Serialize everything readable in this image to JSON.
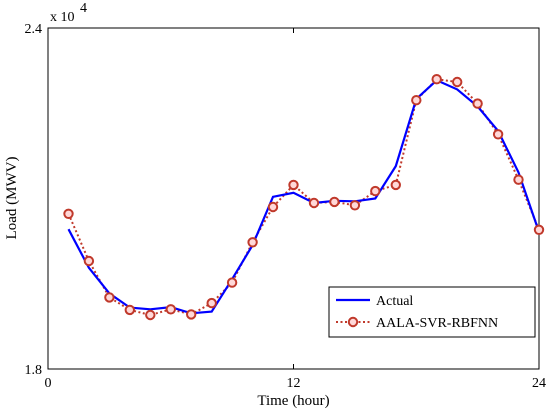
{
  "chart_data": {
    "type": "line",
    "xlabel": "Time (hour)",
    "ylabel": "Load (MWV)",
    "xlim": [
      0,
      24
    ],
    "ylim": [
      18000,
      24000
    ],
    "x_ticks": [
      "0",
      "12",
      "24"
    ],
    "y_ticks": [
      "1.8",
      "2.4"
    ],
    "y_multiplier": "x 10",
    "y_multiplier_exp": "4",
    "grid": false,
    "legend_position": "bottom-right",
    "x": [
      1,
      2,
      3,
      4,
      5,
      6,
      7,
      8,
      9,
      10,
      11,
      12,
      13,
      14,
      15,
      16,
      17,
      18,
      19,
      20,
      21,
      22,
      23,
      24
    ],
    "series": [
      {
        "name": "Actual",
        "color": "#0000ff",
        "style": "solid",
        "values": [
          20460,
          19780,
          19330,
          19080,
          19050,
          19090,
          18980,
          19010,
          19580,
          20180,
          21030,
          21100,
          20920,
          20960,
          20950,
          21000,
          21570,
          22750,
          23080,
          22920,
          22620,
          22190,
          21460,
          20410
        ]
      },
      {
        "name": "AALA-SVR-RBFNN",
        "color": "#c0392b",
        "marker_color": "#ffd8d8",
        "style": "dotted",
        "values": [
          20730,
          19900,
          19260,
          19040,
          18950,
          19050,
          18960,
          19160,
          19520,
          20230,
          20850,
          21240,
          20920,
          20940,
          20880,
          21130,
          21240,
          22730,
          23100,
          23050,
          22670,
          22130,
          21330,
          20450
        ]
      }
    ]
  }
}
